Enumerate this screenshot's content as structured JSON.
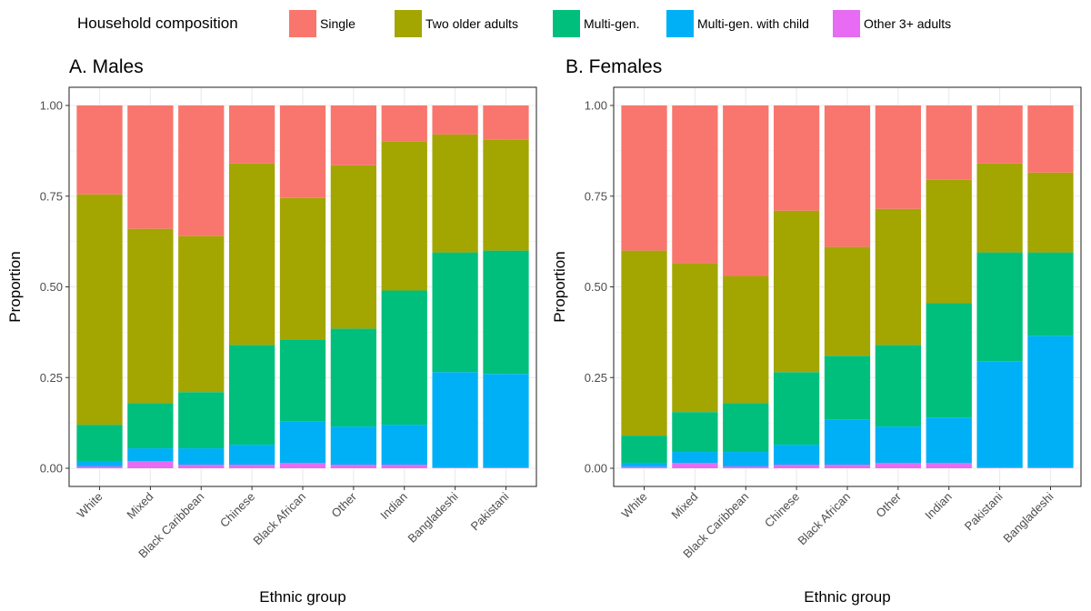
{
  "legend": {
    "title": "Household composition",
    "position": "top",
    "items": [
      {
        "label": "Single",
        "color": "#F8766D"
      },
      {
        "label": "Two older adults",
        "color": "#A3A500"
      },
      {
        "label": "Multi-gen.",
        "color": "#00BF7D"
      },
      {
        "label": "Multi-gen. with child",
        "color": "#00B0F6"
      },
      {
        "label": "Other 3+ adults",
        "color": "#E76BF3"
      }
    ]
  },
  "chart_data": [
    {
      "type": "bar",
      "stacked": true,
      "title": "A. Males",
      "xlabel": "Ethnic group",
      "ylabel": "Proportion",
      "ylim": [
        0,
        1
      ],
      "yticks": [
        "0.00",
        "0.25",
        "0.50",
        "0.75",
        "1.00"
      ],
      "grid": true,
      "categories": [
        "White",
        "Mixed",
        "Black Caribbean",
        "Chinese",
        "Black African",
        "Other",
        "Indian",
        "Bangladeshi",
        "Pakistani"
      ],
      "series": [
        {
          "name": "Single",
          "values": [
            0.245,
            0.34,
            0.36,
            0.16,
            0.255,
            0.165,
            0.1,
            0.08,
            0.095
          ]
        },
        {
          "name": "Two older adults",
          "values": [
            0.635,
            0.48,
            0.43,
            0.5,
            0.39,
            0.45,
            0.41,
            0.325,
            0.305
          ]
        },
        {
          "name": "Multi-gen.",
          "values": [
            0.1,
            0.125,
            0.155,
            0.275,
            0.225,
            0.27,
            0.37,
            0.33,
            0.34
          ]
        },
        {
          "name": "Multi-gen. with child",
          "values": [
            0.015,
            0.035,
            0.045,
            0.055,
            0.115,
            0.105,
            0.11,
            0.263,
            0.258
          ]
        },
        {
          "name": "Other 3+ adults",
          "values": [
            0.005,
            0.02,
            0.01,
            0.01,
            0.015,
            0.01,
            0.01,
            0.002,
            0.002
          ]
        }
      ]
    },
    {
      "type": "bar",
      "stacked": true,
      "title": "B. Females",
      "xlabel": "Ethnic group",
      "ylabel": "Proportion",
      "ylim": [
        0,
        1
      ],
      "yticks": [
        "0.00",
        "0.25",
        "0.50",
        "0.75",
        "1.00"
      ],
      "grid": true,
      "categories": [
        "White",
        "Mixed",
        "Black Caribbean",
        "Chinese",
        "Black African",
        "Other",
        "Indian",
        "Pakistani",
        "Bangladeshi"
      ],
      "series": [
        {
          "name": "Single",
          "values": [
            0.4,
            0.435,
            0.47,
            0.29,
            0.39,
            0.285,
            0.205,
            0.16,
            0.185
          ]
        },
        {
          "name": "Two older adults",
          "values": [
            0.51,
            0.41,
            0.35,
            0.445,
            0.3,
            0.375,
            0.34,
            0.245,
            0.22
          ]
        },
        {
          "name": "Multi-gen.",
          "values": [
            0.075,
            0.11,
            0.135,
            0.2,
            0.175,
            0.225,
            0.315,
            0.3,
            0.23
          ]
        },
        {
          "name": "Multi-gen. with child",
          "values": [
            0.011,
            0.03,
            0.04,
            0.055,
            0.125,
            0.1,
            0.125,
            0.293,
            0.363
          ]
        },
        {
          "name": "Other 3+ adults",
          "values": [
            0.004,
            0.015,
            0.005,
            0.01,
            0.01,
            0.015,
            0.015,
            0.002,
            0.002
          ]
        }
      ]
    }
  ]
}
